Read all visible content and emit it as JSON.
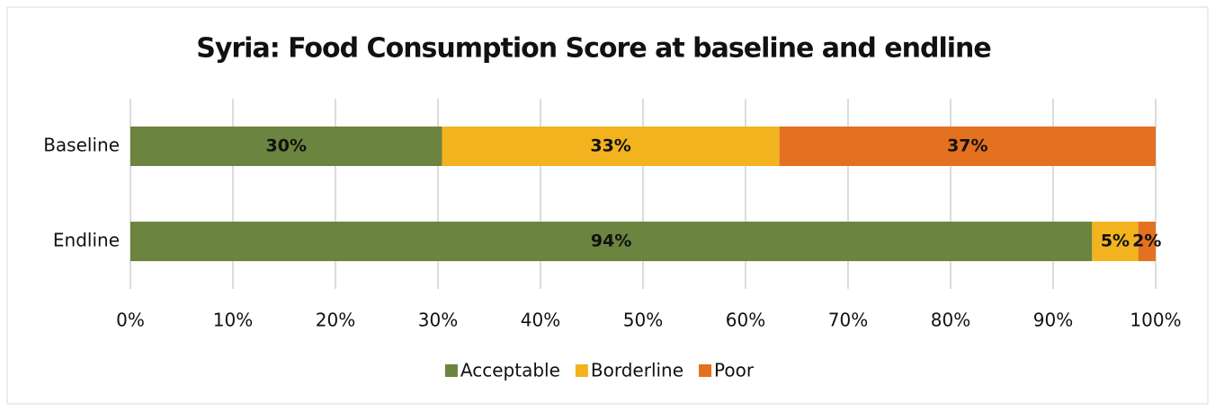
{
  "chart_data": {
    "type": "bar",
    "orientation": "horizontal",
    "stacked": true,
    "title": "Syria: Food Consumption Score at baseline and endline",
    "categories": [
      "Baseline",
      "Endline"
    ],
    "series": [
      {
        "name": "Acceptable",
        "color": "#6b843f",
        "values": [
          30.4,
          93.8
        ],
        "value_labels": [
          "30%",
          "94%"
        ]
      },
      {
        "name": "Borderline",
        "color": "#f2b31f",
        "values": [
          32.9,
          4.5
        ],
        "value_labels": [
          "33%",
          "5%"
        ]
      },
      {
        "name": "Poor",
        "color": "#e3711f",
        "values": [
          36.7,
          1.7
        ],
        "value_labels": [
          "37%",
          "2%"
        ]
      }
    ],
    "xlim": [
      0,
      100
    ],
    "xticks": [
      {
        "value": 0,
        "label": "0%"
      },
      {
        "value": 10,
        "label": "10%"
      },
      {
        "value": 20,
        "label": "20%"
      },
      {
        "value": 30,
        "label": "30%"
      },
      {
        "value": 40,
        "label": "40%"
      },
      {
        "value": 50,
        "label": "50%"
      },
      {
        "value": 60,
        "label": "60%"
      },
      {
        "value": 70,
        "label": "70%"
      },
      {
        "value": 80,
        "label": "80%"
      },
      {
        "value": 90,
        "label": "90%"
      },
      {
        "value": 100,
        "label": "100%"
      }
    ],
    "grid": true,
    "legend": "bottom"
  }
}
